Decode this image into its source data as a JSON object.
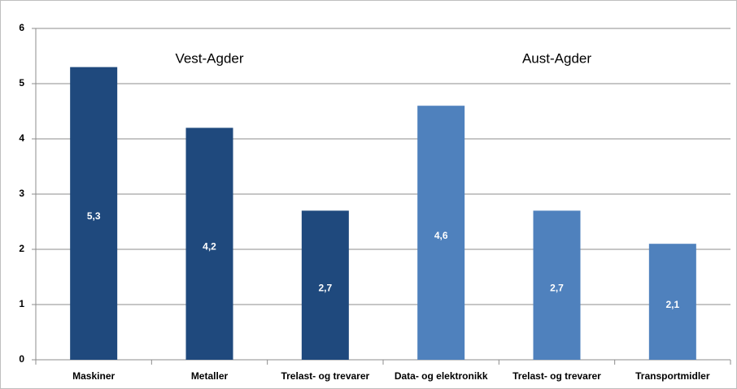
{
  "chart_data": {
    "type": "bar",
    "categories": [
      "Maskiner",
      "Metaller",
      "Trelast- og trevarer",
      "Data- og elektronikk",
      "Trelast- og trevarer",
      "Transportmidler"
    ],
    "values": [
      5.3,
      4.2,
      2.7,
      4.6,
      2.7,
      2.1
    ],
    "value_labels": [
      "5,3",
      "4,2",
      "2,7",
      "4,6",
      "2,7",
      "2,1"
    ],
    "colors": [
      "#1f497d",
      "#1f497d",
      "#1f497d",
      "#4f81bd",
      "#4f81bd",
      "#4f81bd"
    ],
    "annotations": [
      "Vest-Agder",
      "Aust-Agder"
    ],
    "ylim": [
      0,
      6
    ],
    "yticks": [
      0,
      1,
      2,
      3,
      4,
      5,
      6
    ],
    "grid": true
  }
}
